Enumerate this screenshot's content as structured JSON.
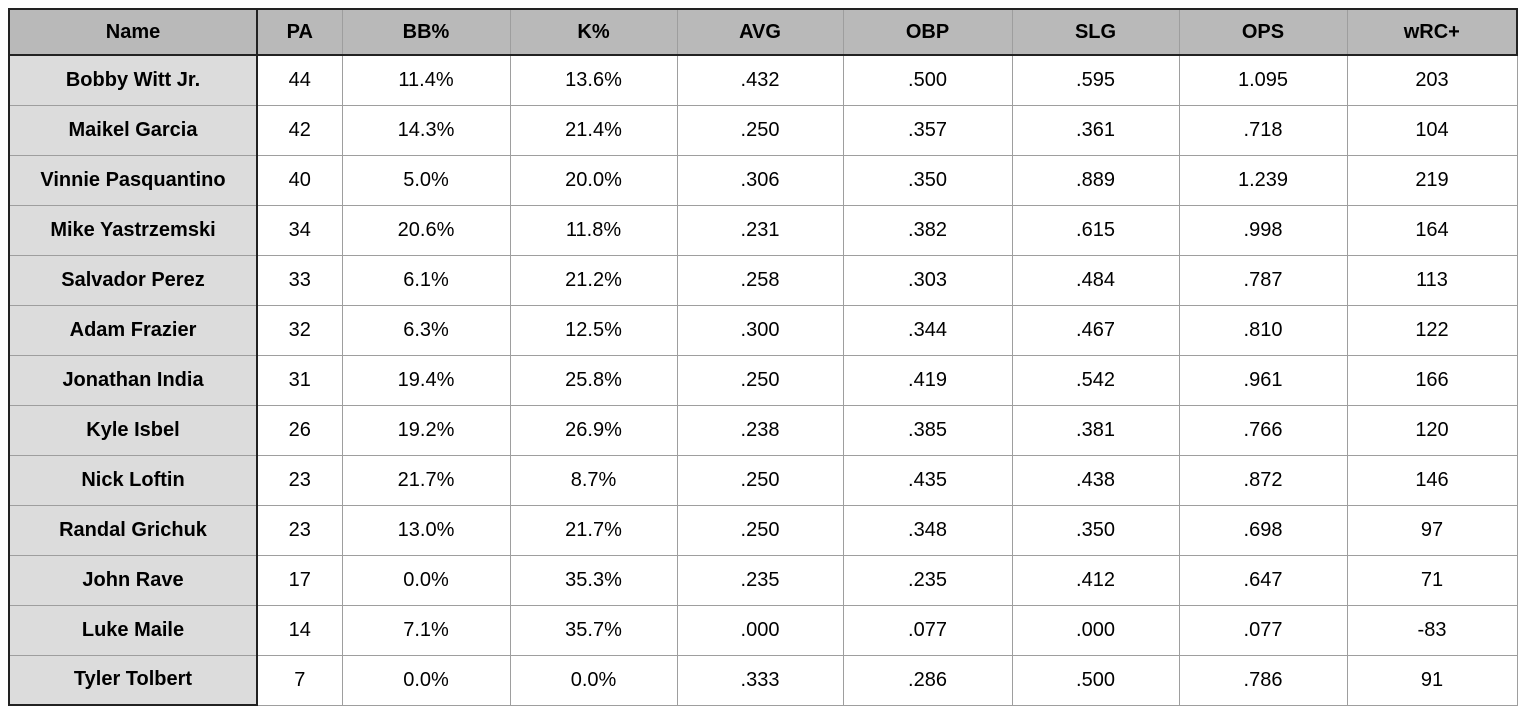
{
  "chart_data": {
    "type": "table",
    "columns": [
      "Name",
      "PA",
      "BB%",
      "K%",
      "AVG",
      "OBP",
      "SLG",
      "OPS",
      "wRC+"
    ],
    "rows": [
      [
        "Bobby Witt Jr.",
        "44",
        "11.4%",
        "13.6%",
        ".432",
        ".500",
        ".595",
        "1.095",
        "203"
      ],
      [
        "Maikel Garcia",
        "42",
        "14.3%",
        "21.4%",
        ".250",
        ".357",
        ".361",
        ".718",
        "104"
      ],
      [
        "Vinnie Pasquantino",
        "40",
        "5.0%",
        "20.0%",
        ".306",
        ".350",
        ".889",
        "1.239",
        "219"
      ],
      [
        "Mike Yastrzemski",
        "34",
        "20.6%",
        "11.8%",
        ".231",
        ".382",
        ".615",
        ".998",
        "164"
      ],
      [
        "Salvador Perez",
        "33",
        "6.1%",
        "21.2%",
        ".258",
        ".303",
        ".484",
        ".787",
        "113"
      ],
      [
        "Adam Frazier",
        "32",
        "6.3%",
        "12.5%",
        ".300",
        ".344",
        ".467",
        ".810",
        "122"
      ],
      [
        "Jonathan India",
        "31",
        "19.4%",
        "25.8%",
        ".250",
        ".419",
        ".542",
        ".961",
        "166"
      ],
      [
        "Kyle Isbel",
        "26",
        "19.2%",
        "26.9%",
        ".238",
        ".385",
        ".381",
        ".766",
        "120"
      ],
      [
        "Nick Loftin",
        "23",
        "21.7%",
        "8.7%",
        ".250",
        ".435",
        ".438",
        ".872",
        "146"
      ],
      [
        "Randal Grichuk",
        "23",
        "13.0%",
        "21.7%",
        ".250",
        ".348",
        ".350",
        ".698",
        "97"
      ],
      [
        "John Rave",
        "17",
        "0.0%",
        "35.3%",
        ".235",
        ".235",
        ".412",
        ".647",
        "71"
      ],
      [
        "Luke Maile",
        "14",
        "7.1%",
        "35.7%",
        ".000",
        ".077",
        ".000",
        ".077",
        "-83"
      ],
      [
        "Tyler Tolbert",
        "7",
        "0.0%",
        "0.0%",
        ".333",
        ".286",
        ".500",
        ".786",
        "91"
      ]
    ]
  },
  "colors": {
    "header_bg": "#b9b9b9",
    "name_col_bg": "#dcdcdc",
    "border_dark": "#222222",
    "border_light": "#9e9e9e",
    "text": "#000000",
    "page_bg": "#ffffff"
  }
}
